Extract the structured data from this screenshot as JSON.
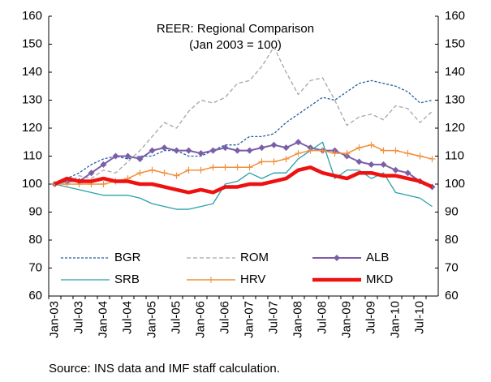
{
  "chart_data": {
    "type": "line",
    "title": "REER: Regional Comparison",
    "subtitle": "(Jan 2003 = 100)",
    "source": "Source: INS data and  IMF staff calculation.",
    "categories": [
      "Jan-03",
      null,
      "Jul-03",
      null,
      "Jan-04",
      null,
      "Jul-04",
      null,
      "Jan-05",
      null,
      "Jul-05",
      null,
      "Jan-06",
      null,
      "Jul-06",
      null,
      "Jan-07",
      null,
      "Jul-07",
      null,
      "Jan-08",
      null,
      "Jul-08",
      null,
      "Jan-09",
      null,
      "Jul-09",
      null,
      "Jan-10",
      null,
      "Jul-10",
      null
    ],
    "ylim": [
      60,
      160
    ],
    "yticks": [
      60,
      70,
      80,
      90,
      100,
      110,
      120,
      130,
      140,
      150,
      160
    ],
    "y2lim": [
      60,
      160
    ],
    "y2ticks": [
      60,
      70,
      80,
      90,
      100,
      110,
      120,
      130,
      140,
      150,
      160
    ],
    "series": [
      {
        "name": "BGR",
        "color": "#1f5fa0",
        "dash": "3,2",
        "width": 1.3,
        "marker": "none",
        "values": [
          100,
          102,
          104,
          107,
          109,
          110,
          109,
          110,
          110,
          112,
          112,
          110,
          110,
          112,
          114,
          114,
          117,
          117,
          118,
          122,
          125,
          128,
          131,
          130,
          133,
          136,
          137,
          136,
          135,
          133,
          129,
          130
        ]
      },
      {
        "name": "ROM",
        "color": "#a6a6a6",
        "dash": "5,3",
        "width": 1.3,
        "marker": "none",
        "values": [
          100,
          100,
          103,
          102,
          105,
          104,
          108,
          112,
          117,
          122,
          120,
          126,
          130,
          129,
          131,
          136,
          137,
          142,
          149,
          140,
          132,
          137,
          138,
          130,
          121,
          124,
          125,
          123,
          128,
          127,
          122,
          126
        ]
      },
      {
        "name": "ALB",
        "color": "#7b5ea7",
        "dash": "none",
        "width": 2,
        "marker": "diamond",
        "values": [
          100,
          101,
          101,
          104,
          107,
          110,
          110,
          109,
          112,
          113,
          112,
          112,
          111,
          112,
          113,
          112,
          112,
          113,
          114,
          113,
          115,
          113,
          112,
          112,
          110,
          108,
          107,
          107,
          105,
          104,
          101,
          99
        ]
      },
      {
        "name": "SRB",
        "color": "#2aa0a8",
        "dash": "none",
        "width": 1.3,
        "marker": "none",
        "values": [
          100,
          99,
          98,
          97,
          96,
          96,
          96,
          95,
          93,
          92,
          91,
          91,
          92,
          93,
          100,
          101,
          104,
          102,
          104,
          104,
          109,
          112,
          115,
          102,
          105,
          105,
          102,
          104,
          97,
          96,
          95,
          92
        ]
      },
      {
        "name": "HRV",
        "color": "#f0903c",
        "dash": "none",
        "width": 1.5,
        "marker": "plus",
        "values": [
          100,
          100,
          100,
          100,
          100,
          101,
          102,
          104,
          105,
          104,
          103,
          105,
          105,
          106,
          106,
          106,
          106,
          108,
          108,
          109,
          111,
          112,
          112,
          111,
          111,
          113,
          114,
          112,
          112,
          111,
          110,
          109
        ]
      },
      {
        "name": "MKD",
        "color": "#ee1111",
        "dash": "none",
        "width": 4.5,
        "marker": "none",
        "values": [
          100,
          102,
          101,
          101,
          102,
          101,
          101,
          100,
          100,
          99,
          98,
          97,
          98,
          97,
          99,
          99,
          100,
          100,
          101,
          102,
          105,
          106,
          104,
          103,
          102,
          104,
          104,
          103,
          103,
          102,
          101,
          99
        ]
      }
    ]
  }
}
